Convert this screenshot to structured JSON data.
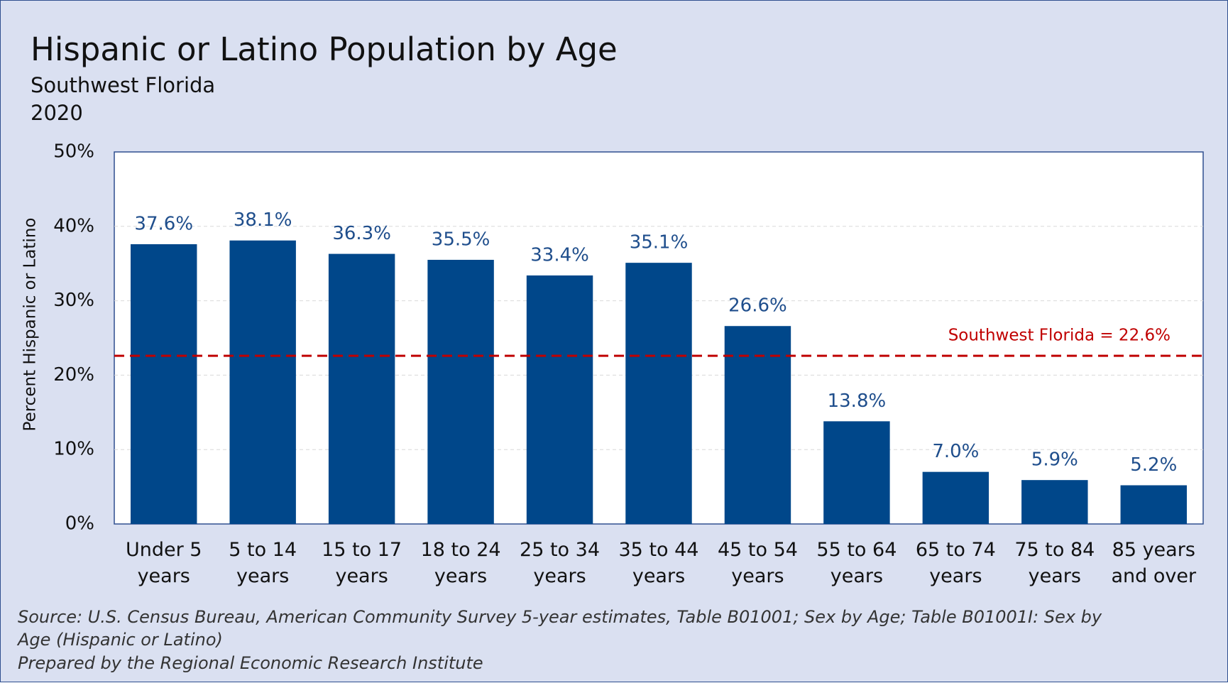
{
  "chart_data": {
    "type": "bar",
    "title": "Hispanic or Latino Population by Age",
    "subtitle": "Southwest Florida",
    "year_label": "2020",
    "y_axis_label": "Percent Hispanic or Latino",
    "categories": [
      "Under 5 years",
      "5 to 14 years",
      "15 to 17 years",
      "18 to 24 years",
      "25 to 34 years",
      "35 to 44 years",
      "45 to 54 years",
      "55 to 64 years",
      "65 to 74 years",
      "75 to 84 years",
      "85 years and over"
    ],
    "values": [
      37.6,
      38.1,
      36.3,
      35.5,
      33.4,
      35.1,
      26.6,
      13.8,
      7.0,
      5.9,
      5.2
    ],
    "value_labels": [
      "37.6%",
      "38.1%",
      "36.3%",
      "35.5%",
      "33.4%",
      "35.1%",
      "26.6%",
      "13.8%",
      "7.0%",
      "5.9%",
      "5.2%"
    ],
    "color": "#00478a",
    "ylim": [
      0,
      50
    ],
    "yticks": [
      {
        "value": 0,
        "label": "0%"
      },
      {
        "value": 10,
        "label": "10%"
      },
      {
        "value": 20,
        "label": "20%"
      },
      {
        "value": 30,
        "label": "30%"
      },
      {
        "value": 40,
        "label": "40%"
      },
      {
        "value": 50,
        "label": "50%"
      }
    ],
    "grid": true,
    "reference_line": {
      "value": 22.6,
      "label": "Southwest Florida = 22.6%",
      "color": "#c00000"
    },
    "source": "Source: U.S. Census Bureau, American Community Survey 5-year estimates, Table B01001;  Sex by Age; Table B01001I:  Sex by Age (Hispanic or Latino)",
    "credit": "Prepared by the Regional Economic Research Institute"
  }
}
